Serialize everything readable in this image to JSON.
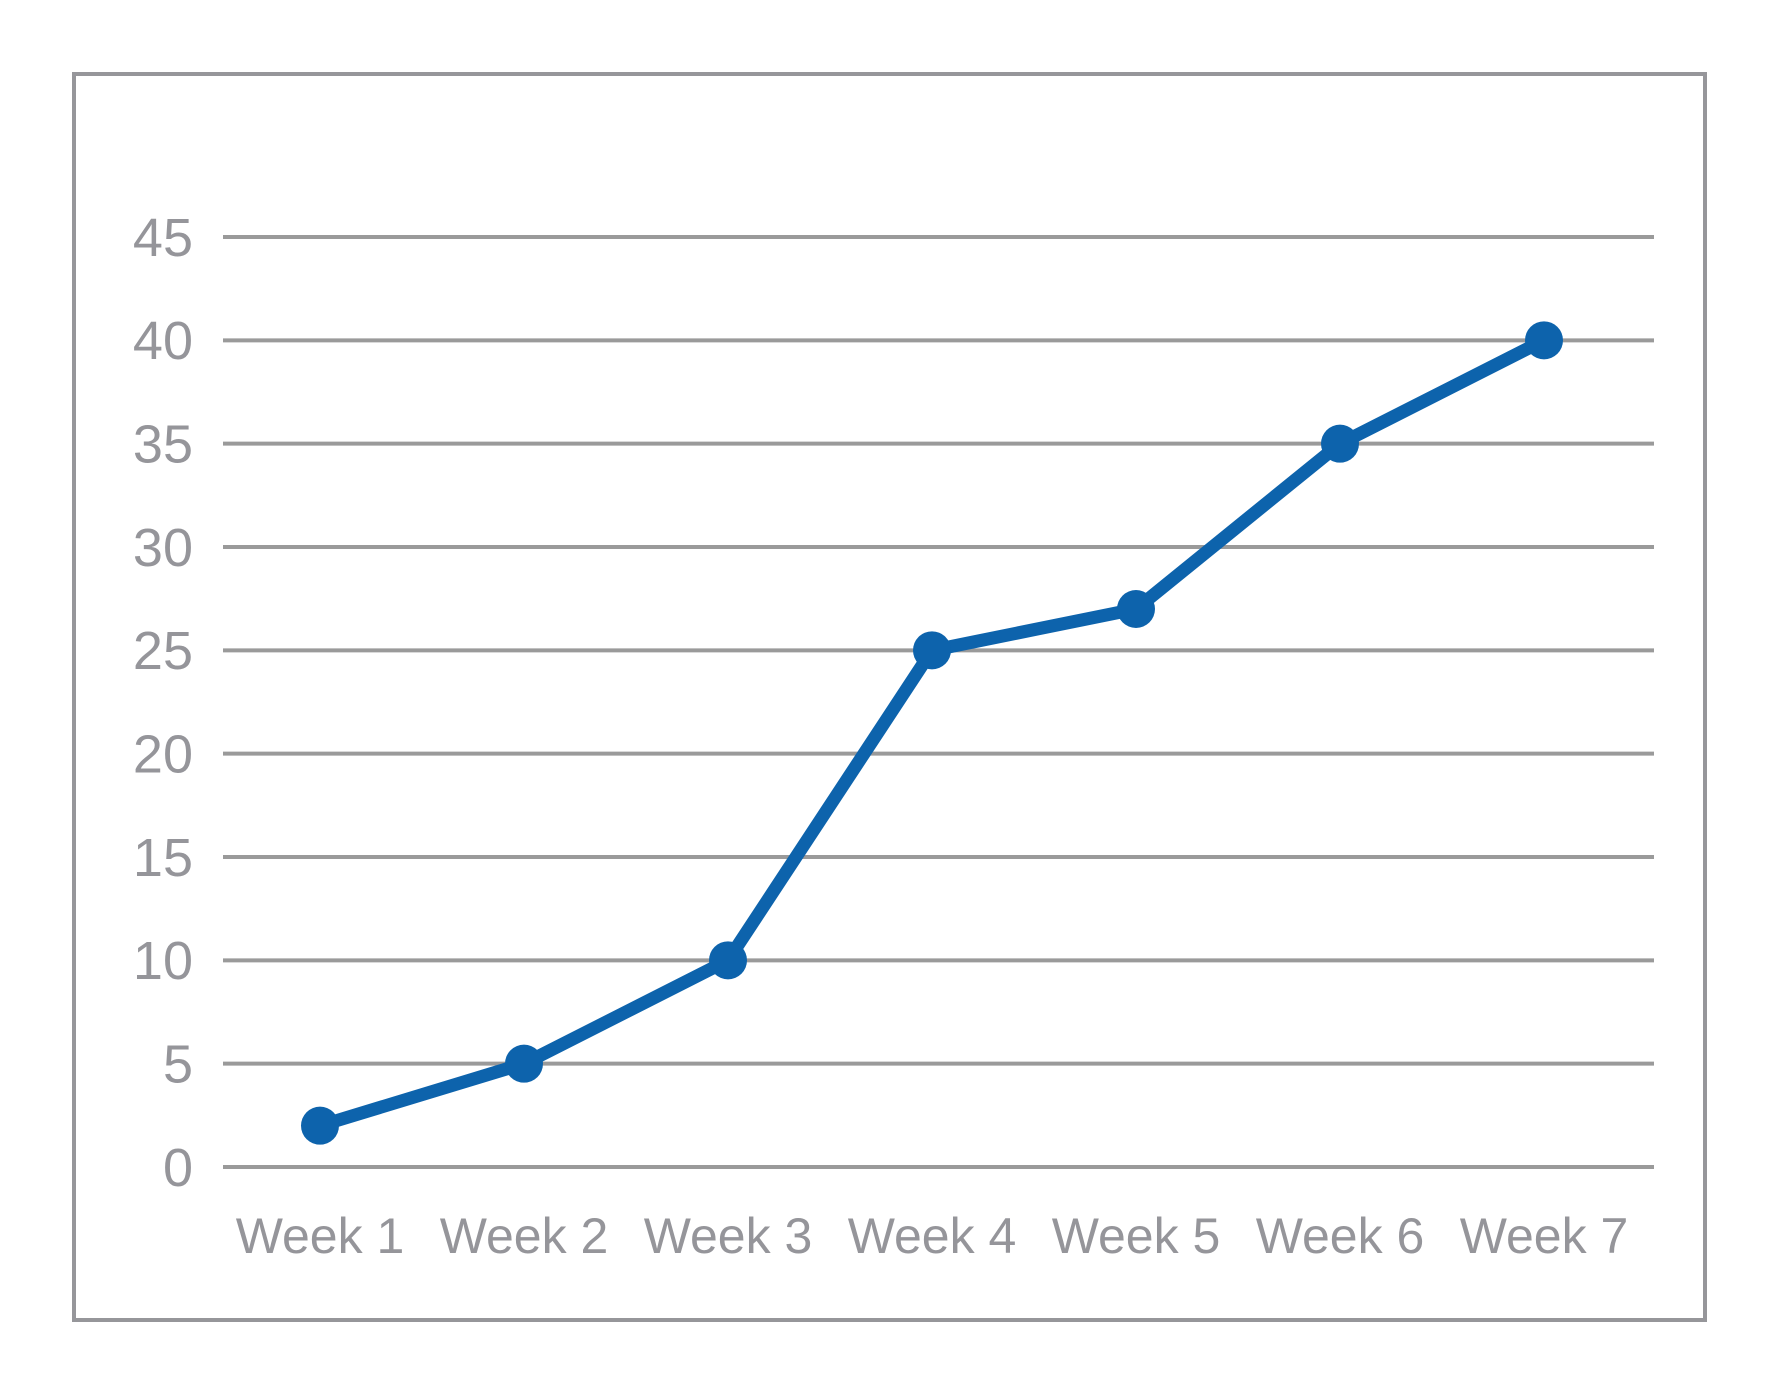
{
  "chart_data": {
    "type": "line",
    "categories": [
      "Week 1",
      "Week 2",
      "Week 3",
      "Week 4",
      "Week 5",
      "Week 6",
      "Week 7"
    ],
    "values": [
      2,
      5,
      10,
      25,
      27,
      35,
      40
    ],
    "yticks": [
      0,
      5,
      10,
      15,
      20,
      25,
      30,
      35,
      40,
      45
    ],
    "ylim": [
      0,
      45
    ],
    "grid": true,
    "legend": "none",
    "colors": {
      "line": "#0d63ac",
      "marker": "#0d63ac",
      "gridline": "#9a9a9a",
      "axis_label": "#95959a",
      "chart_border": "#96969a",
      "background": "#ffffff"
    }
  }
}
